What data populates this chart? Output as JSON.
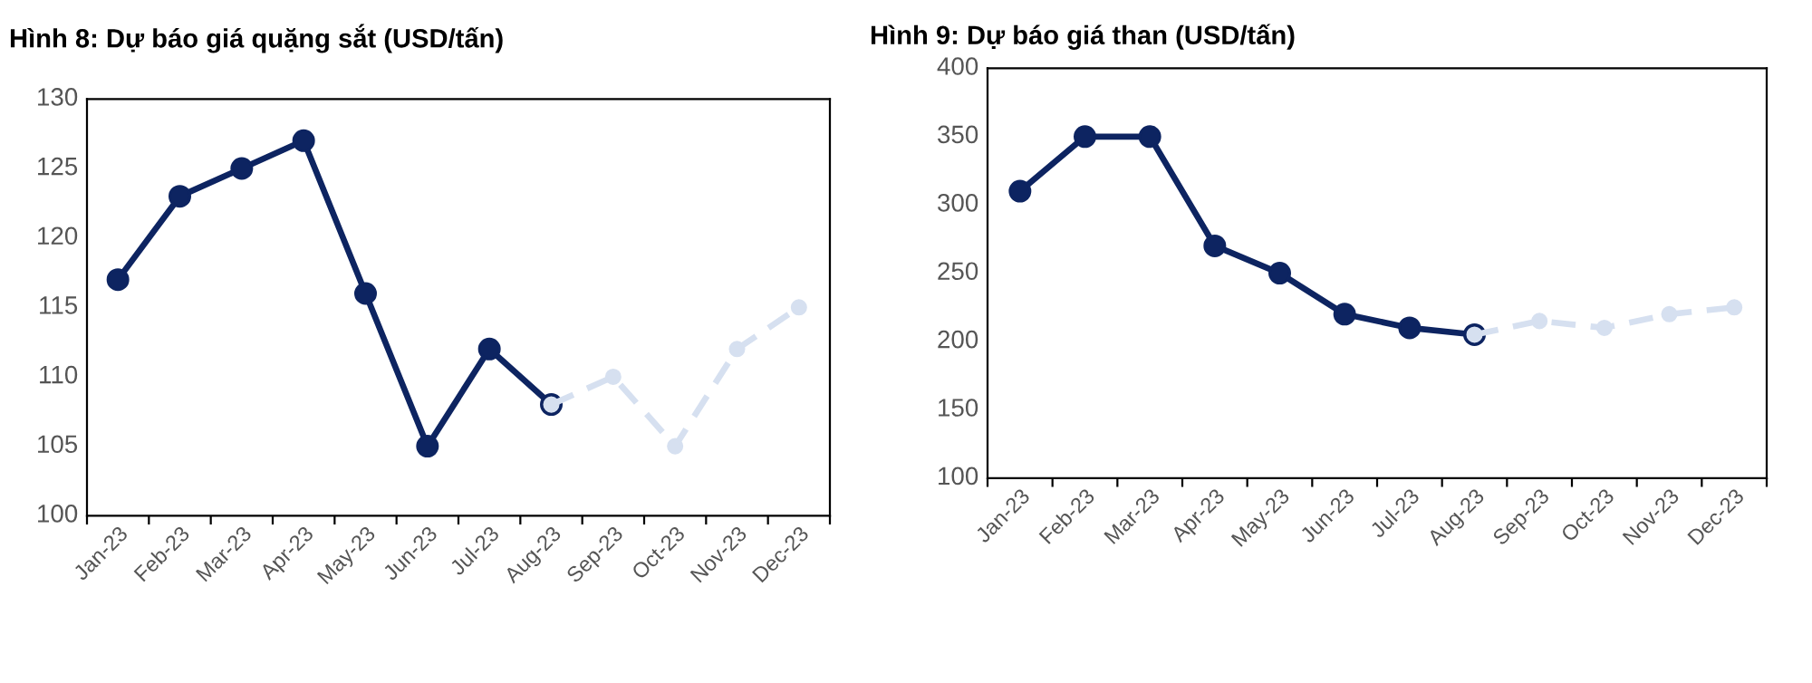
{
  "chart_data": [
    {
      "type": "line",
      "title": "Hình 8: Dự báo giá quặng sắt (USD/tấn)",
      "categories": [
        "Jan-23",
        "Feb-23",
        "Mar-23",
        "Apr-23",
        "May-23",
        "Jun-23",
        "Jul-23",
        "Aug-23",
        "Sep-23",
        "Oct-23",
        "Nov-23",
        "Dec-23"
      ],
      "series": [
        {
          "color": "#0d2461",
          "line_style": "solid",
          "values": [
            117,
            123,
            125,
            127,
            116,
            105,
            112,
            108,
            null,
            null,
            null,
            null
          ]
        },
        {
          "color": "#d6e0f0",
          "line_style": "dashed",
          "values": [
            null,
            null,
            null,
            null,
            null,
            null,
            null,
            108,
            110,
            105,
            112,
            115
          ]
        }
      ],
      "ylim": [
        100,
        130
      ],
      "yticks": [
        100,
        105,
        110,
        115,
        120,
        125,
        130
      ],
      "marker": "circle",
      "grid": false,
      "legend": false
    },
    {
      "type": "line",
      "title": "Hình 9: Dự báo giá than (USD/tấn)",
      "categories": [
        "Jan-23",
        "Feb-23",
        "Mar-23",
        "Apr-23",
        "May-23",
        "Jun-23",
        "Jul-23",
        "Aug-23",
        "Sep-23",
        "Oct-23",
        "Nov-23",
        "Dec-23"
      ],
      "series": [
        {
          "color": "#0d2461",
          "line_style": "solid",
          "values": [
            310,
            350,
            350,
            270,
            250,
            220,
            210,
            205,
            null,
            null,
            null,
            null
          ]
        },
        {
          "color": "#d6e0f0",
          "line_style": "dashed",
          "values": [
            null,
            null,
            null,
            null,
            null,
            null,
            null,
            205,
            215,
            210,
            220,
            225
          ]
        }
      ],
      "ylim": [
        100,
        400
      ],
      "yticks": [
        100,
        150,
        200,
        250,
        300,
        350,
        400
      ],
      "marker": "circle",
      "grid": false,
      "legend": false
    }
  ]
}
